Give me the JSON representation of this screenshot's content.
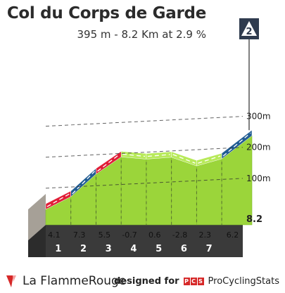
{
  "header": {
    "title": "Col du Corps de Garde",
    "subtitle": "395 m - 8.2 Km at 2.9 %"
  },
  "badge": {
    "category": "2",
    "flag_color": "#2f3b4e"
  },
  "chart_data": {
    "type": "area",
    "x_unit": "km",
    "y_unit": "m",
    "total_distance": 8.2,
    "km_markers": [
      "1",
      "2",
      "3",
      "4",
      "5",
      "6",
      "7"
    ],
    "segments": [
      {
        "start_km": 0,
        "end_km": 1,
        "gradient": 4.1,
        "label": "4.1"
      },
      {
        "start_km": 1,
        "end_km": 2,
        "gradient": 7.3,
        "label": "7.3"
      },
      {
        "start_km": 2,
        "end_km": 3,
        "gradient": 5.5,
        "label": "5.5"
      },
      {
        "start_km": 3,
        "end_km": 4,
        "gradient": -0.7,
        "label": "-0.7"
      },
      {
        "start_km": 4,
        "end_km": 5,
        "gradient": 0.6,
        "label": "0.6"
      },
      {
        "start_km": 5,
        "end_km": 6,
        "gradient": -2.8,
        "label": "-2.8"
      },
      {
        "start_km": 6,
        "end_km": 7,
        "gradient": 2.3,
        "label": "2.3"
      },
      {
        "start_km": 7,
        "end_km": 8.2,
        "gradient": 6.2,
        "label": "6.2"
      }
    ],
    "y_ticks": [
      {
        "value": 100,
        "label": "100m"
      },
      {
        "value": 200,
        "label": "200m"
      },
      {
        "value": 300,
        "label": "300m"
      }
    ],
    "end_label": "8.2",
    "colors": {
      "green_light": "#9bd53a",
      "green_top": "#b8ea5a",
      "green_side": "#7fb82f",
      "red": "#e01f38",
      "blue": "#225d93",
      "base_dark": "#3a3a3a",
      "base_top": "#525252",
      "wall": "#a6a097",
      "grid": "#2e2e2e"
    }
  },
  "footer": {
    "brand": "La FlammeRouge",
    "credit_label": "designed for",
    "pcs_letters": [
      "P",
      "C",
      "S"
    ],
    "pcs_name": "ProCyclingStats"
  }
}
